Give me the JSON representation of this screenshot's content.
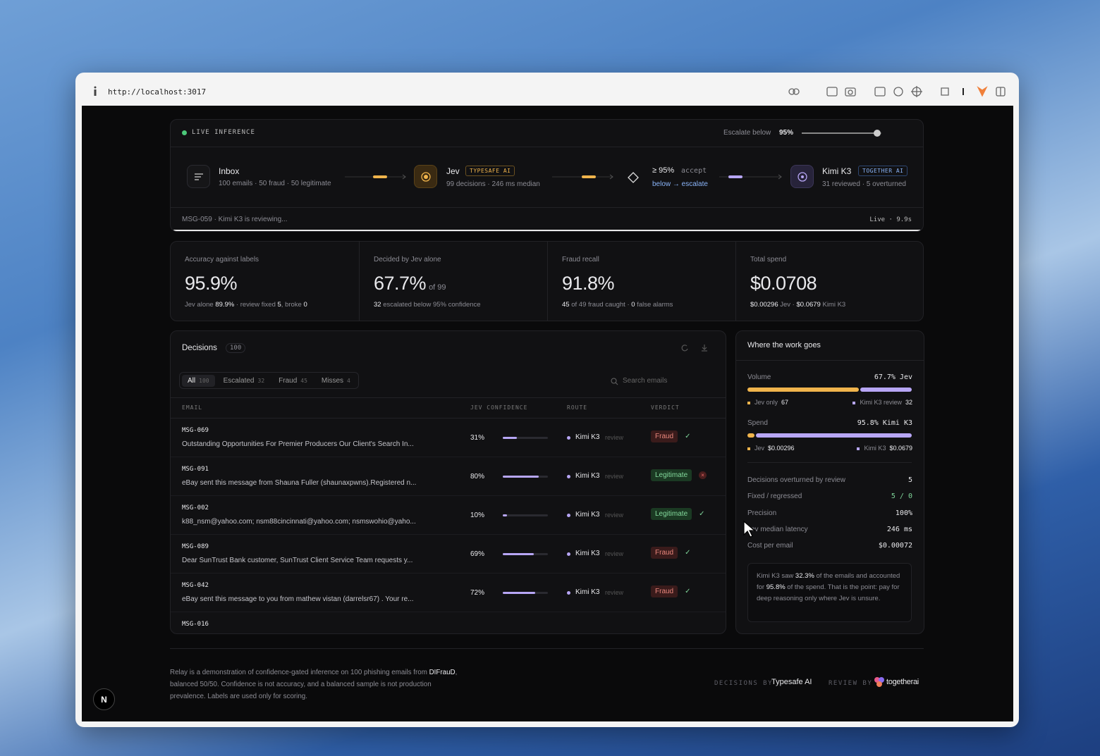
{
  "browser": {
    "url": "http://localhost:3017"
  },
  "pipeline": {
    "status": "LIVE INFERENCE",
    "threshold_label": "Escalate below",
    "threshold": 95,
    "threshold_text": "95%",
    "inbox": {
      "name": "Inbox",
      "sub": "100 emails · 50 fraud · 50 legitimate"
    },
    "jev": {
      "name": "Jev",
      "badge": "TYPESAFE AI",
      "sub": "99 decisions · 246 ms median"
    },
    "gate": {
      "rule": "≥ 95%",
      "rule_word": "accept",
      "sub": "below → escalate"
    },
    "kimi": {
      "name": "Kimi K3",
      "badge": "TOGETHER AI",
      "sub": "31 reviewed · 5 overturned"
    },
    "ticker": "MSG-059 · Kimi K3 is reviewing...",
    "live": "Live · 9.9s"
  },
  "stats": [
    {
      "label": "Accuracy against labels",
      "value": "95.9%",
      "sub": [
        {
          "text": "Jev alone "
        },
        {
          "text": "89.9%",
          "strong": true
        },
        {
          "text": " · review fixed "
        },
        {
          "text": "5",
          "strong": true
        },
        {
          "text": ", broke "
        },
        {
          "text": "0",
          "strong": true
        }
      ]
    },
    {
      "label": "Decided by Jev alone",
      "value": "67.7%",
      "suffix": "of 99",
      "sub": [
        {
          "text": "32",
          "strong": true
        },
        {
          "text": " escalated below 95% confidence"
        }
      ]
    },
    {
      "label": "Fraud recall",
      "value": "91.8%",
      "sub": [
        {
          "text": "45",
          "strong": true
        },
        {
          "text": " of 49 fraud caught · "
        },
        {
          "text": "0",
          "strong": true
        },
        {
          "text": " false alarms"
        }
      ]
    },
    {
      "label": "Total spend",
      "value": "$0.0708",
      "sub": [
        {
          "text": "$0.00296",
          "strong": true
        },
        {
          "text": " Jev · "
        },
        {
          "text": "$0.0679",
          "strong": true
        },
        {
          "text": " Kimi K3"
        }
      ]
    }
  ],
  "decisions": {
    "title": "Decisions",
    "count": "100",
    "tabs": [
      {
        "label": "All",
        "count": "100",
        "active": true
      },
      {
        "label": "Escalated",
        "count": "32"
      },
      {
        "label": "Fraud",
        "count": "45"
      },
      {
        "label": "Misses",
        "count": "4"
      }
    ],
    "search": "Search emails",
    "columns": [
      "EMAIL",
      "JEV CONFIDENCE",
      "ROUTE",
      "VERDICT"
    ],
    "rows": [
      {
        "id": "MSG-069",
        "subject": "Outstanding Opportunities For Premier Producers Our Client's Search In...",
        "confidence": 31,
        "confidence_label": "31%",
        "route": "Kimi K3",
        "route_note": "review",
        "verdict": "Fraud",
        "correct": true
      },
      {
        "id": "MSG-091",
        "subject": "eBay sent this message from Shauna Fuller (shaunaxpwns).Registered n...",
        "confidence": 80,
        "confidence_label": "80%",
        "route": "Kimi K3",
        "route_note": "review",
        "verdict": "Legitimate",
        "correct": false
      },
      {
        "id": "MSG-002",
        "subject": "k88_nsm@yahoo.com; nsm88cincinnati@yahoo.com; nsmswohio@yaho...",
        "confidence": 10,
        "confidence_label": "10%",
        "route": "Kimi K3",
        "route_note": "review",
        "verdict": "Legitimate",
        "correct": true
      },
      {
        "id": "MSG-089",
        "subject": "Dear SunTrust Bank customer, SunTrust Client Service Team requests y...",
        "confidence": 69,
        "confidence_label": "69%",
        "route": "Kimi K3",
        "route_note": "review",
        "verdict": "Fraud",
        "correct": true
      },
      {
        "id": "MSG-042",
        "subject": "eBay sent this message to you from mathew vistan (darrelsr67) . Your re...",
        "confidence": 72,
        "confidence_label": "72%",
        "route": "Kimi K3",
        "route_note": "review",
        "verdict": "Fraud",
        "correct": true
      },
      {
        "id": "MSG-016"
      }
    ]
  },
  "work": {
    "title": "Where the work goes",
    "volume": {
      "label": "Volume",
      "value": "67.7% Jev",
      "jev_share": 67.7,
      "legend": [
        {
          "name": "Jev only",
          "value": "67"
        },
        {
          "name": "Kimi K3 review",
          "value": "32"
        }
      ]
    },
    "spend": {
      "label": "Spend",
      "value": "95.8% Kimi K3",
      "kimi_share": 95.8,
      "legend": [
        {
          "name": "Jev",
          "value": "$0.00296"
        },
        {
          "name": "Kimi K3",
          "value": "$0.0679"
        }
      ]
    },
    "metrics": [
      {
        "label": "Decisions overturned by review",
        "value": "5"
      },
      {
        "label": "Fixed / regressed",
        "value": "5 / 0",
        "positive": true
      },
      {
        "label": "Precision",
        "value": "100%"
      },
      {
        "label": "Jev median latency",
        "value": "246 ms"
      },
      {
        "label": "Cost per email",
        "value": "$0.00072"
      }
    ],
    "note": [
      {
        "text": "Kimi K3 saw "
      },
      {
        "text": "32.3%",
        "strong": true
      },
      {
        "text": " of the emails and accounted for "
      },
      {
        "text": "95.8%",
        "strong": true
      },
      {
        "text": " of the spend. That is the point: pay for deep reasoning only where Jev is unsure."
      }
    ]
  },
  "footer": {
    "text": [
      {
        "text": "Relay is a demonstration of confidence-gated inference on 100 phishing emails from "
      },
      {
        "text": "DIFrauD",
        "strong": true
      },
      {
        "text": ", balanced 50/50. Confidence is not accuracy, and a balanced sample is not production prevalence. Labels are used only for scoring."
      }
    ],
    "decisions_by": "DECISIONS BY",
    "decisions_vendor": "Typesafe AI",
    "review_by": "REVIEW BY",
    "review_vendor": "togetherai"
  },
  "dev_badge": "N"
}
